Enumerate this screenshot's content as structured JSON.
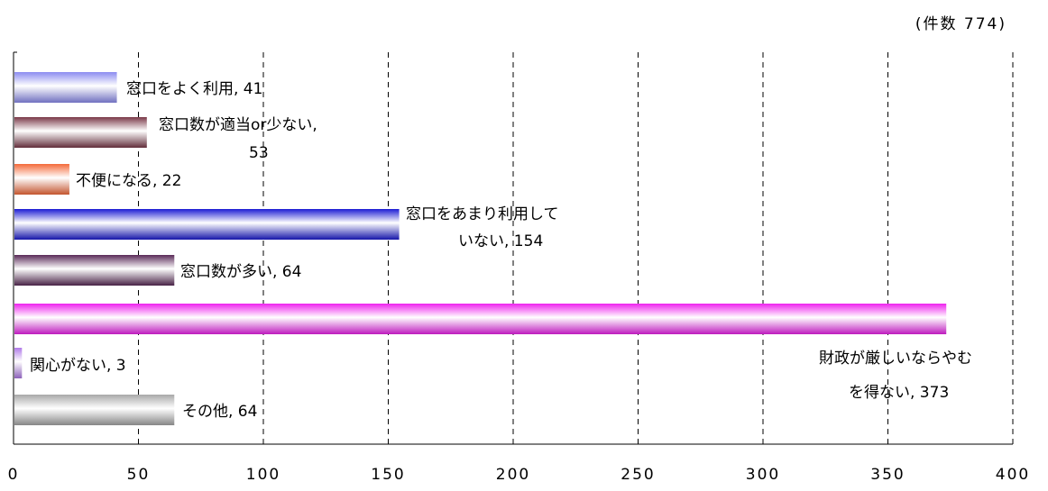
{
  "note": "(件数 774)",
  "chart_data": {
    "type": "bar",
    "orientation": "horizontal",
    "categories": [
      "窓口をよく利用",
      "窓口数が適当or少ない",
      "不便になる",
      "窓口をあまり利用していない",
      "窓口数が多い",
      "財政が厳しいならやむを得ない",
      "関心がない",
      "その他"
    ],
    "values": [
      41,
      53,
      22,
      154,
      64,
      373,
      3,
      64
    ],
    "data_labels": [
      [
        "窓口をよく利用, 41"
      ],
      [
        "窓口数が適当or少ない,",
        "53"
      ],
      [
        "不便になる, 22"
      ],
      [
        "窓口をあまり利用して",
        "いない, 154"
      ],
      [
        "窓口数が多い, 64"
      ],
      [
        "財政が厳しいならやむ",
        "を得ない, 373"
      ],
      [
        "関心がない, 3"
      ],
      [
        "その他, 64"
      ]
    ],
    "xlim": [
      0,
      400
    ],
    "xticks": [
      "0",
      "50",
      "100",
      "150",
      "200",
      "250",
      "300",
      "350",
      "400"
    ],
    "grid": "vertical dashed",
    "colors": [
      "#8c8cf0",
      "#7a3848",
      "#f46a3a",
      "#1c1cd4",
      "#5a2a58",
      "#ee22ee",
      "#b07ae8",
      "#a8a8a8"
    ]
  }
}
